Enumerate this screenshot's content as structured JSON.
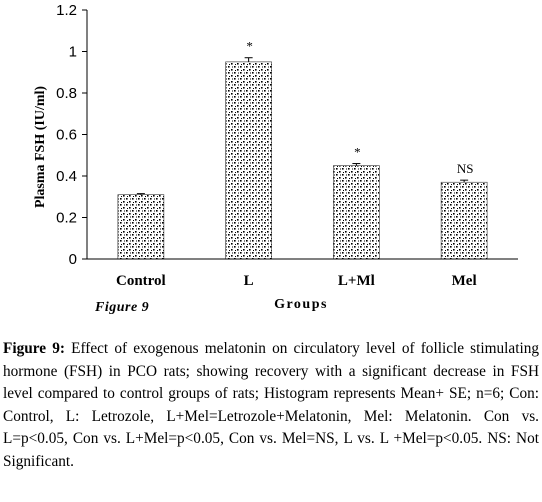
{
  "chart_data": {
    "type": "bar",
    "categories": [
      "Control",
      "L",
      "L+Ml",
      "Mel"
    ],
    "values": [
      0.31,
      0.95,
      0.45,
      0.37
    ],
    "error": [
      0.005,
      0.02,
      0.01,
      0.01
    ],
    "annotations": [
      "",
      "*",
      "*",
      "NS"
    ],
    "ylabel": "Plasma FSH (IU/ml)",
    "xlabel": "Groups",
    "ylim": [
      0,
      1.2
    ],
    "yticks": [
      "0",
      "0.2",
      "0.4",
      "0.6",
      "0.8",
      "1",
      "1.2"
    ],
    "inset_label": "Figure 9",
    "grid": false,
    "bar_pattern": "stippled"
  },
  "caption": {
    "label": "Figure 9:",
    "text": " Effect of exogenous melatonin on circulatory level of follicle stimulating hormone (FSH) in PCO rats; showing recovery with a significant decrease in FSH level compared to control groups of rats; Histogram represents Mean+ SE; n=6; Con: Control, L: Letrozole, L+Mel=Letrozole+Melatonin, Mel: Melatonin. Con vs. L=p<0.05, Con vs. L+Mel=p<0.05, Con vs. Mel=NS, L vs. L +Mel=p<0.05. NS: Not Significant."
  }
}
